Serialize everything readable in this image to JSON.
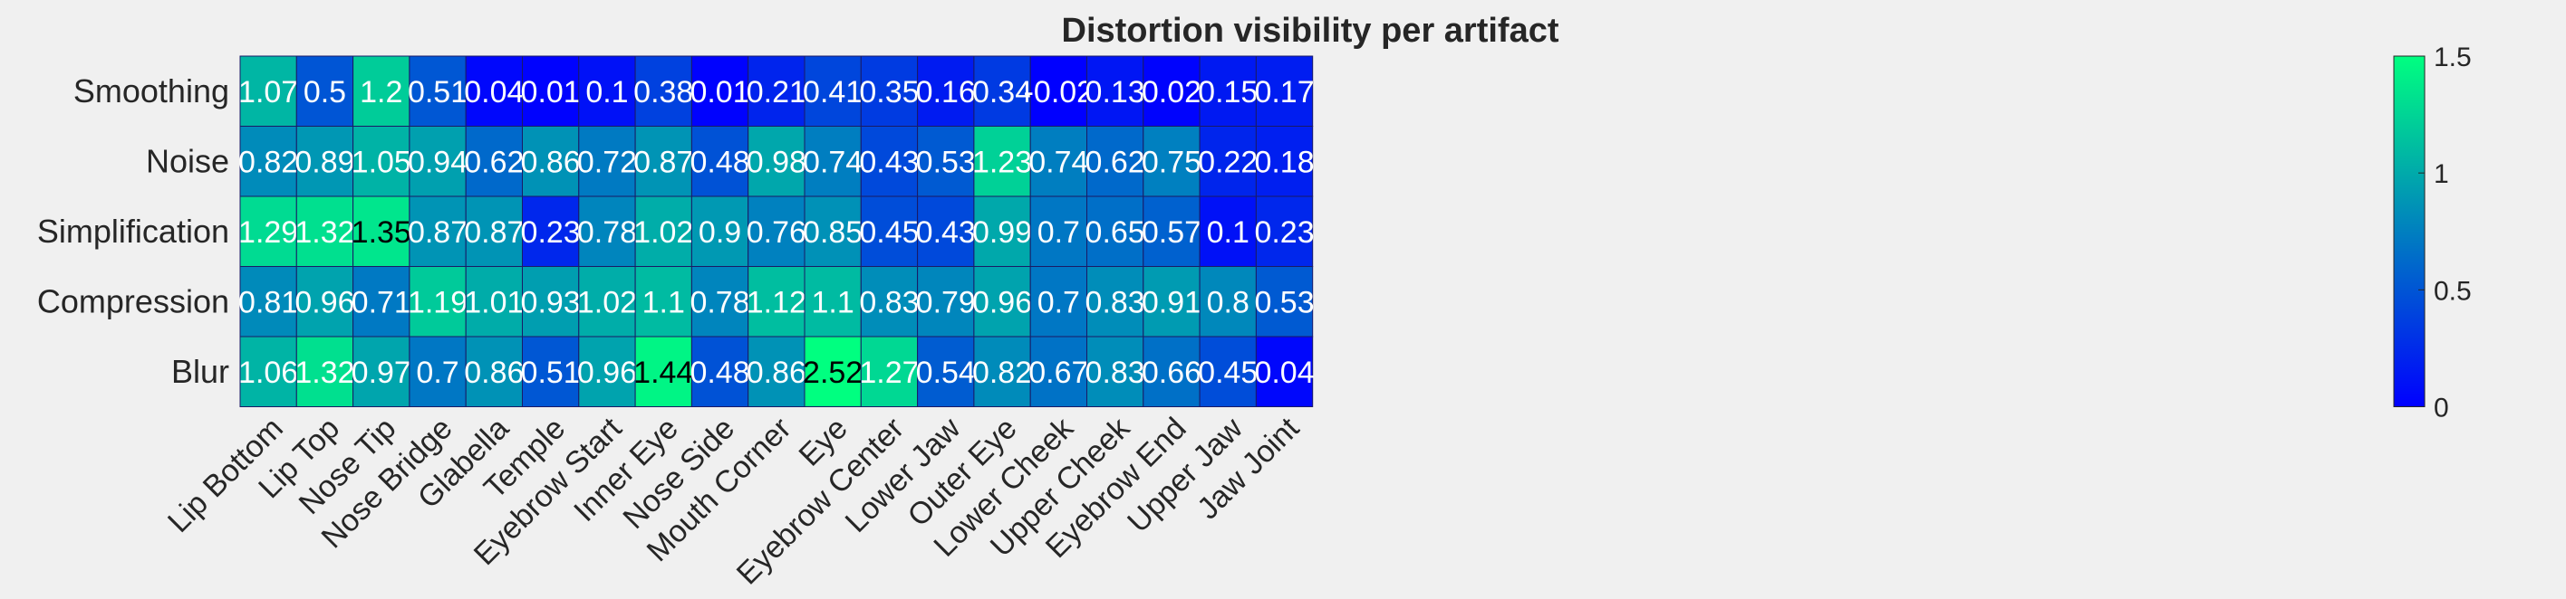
{
  "chart_data": {
    "type": "heatmap",
    "title": "Distortion visibility per artifact",
    "rows": [
      "Smoothing",
      "Noise",
      "Simplification",
      "Compression",
      "Blur"
    ],
    "columns": [
      "Lip Bottom",
      "Lip Top",
      "Nose Tip",
      "Nose Bridge",
      "Glabella",
      "Temple",
      "Eyebrow Start",
      "Inner Eye",
      "Nose Side",
      "Mouth Corner",
      "Eye",
      "Eyebrow Center",
      "Lower Jaw",
      "Outer Eye",
      "Lower Cheek",
      "Upper Cheek",
      "Eyebrow End",
      "Upper Jaw",
      "Jaw Joint"
    ],
    "values": [
      [
        1.07,
        0.5,
        1.2,
        0.51,
        0.04,
        0.01,
        0.1,
        0.38,
        0.01,
        0.21,
        0.41,
        0.35,
        0.16,
        0.34,
        -0.02,
        0.13,
        0.02,
        0.15,
        0.17
      ],
      [
        0.82,
        0.89,
        1.05,
        0.94,
        0.62,
        0.86,
        0.72,
        0.87,
        0.48,
        0.98,
        0.74,
        0.43,
        0.53,
        1.23,
        0.74,
        0.62,
        0.75,
        0.22,
        0.18
      ],
      [
        1.29,
        1.32,
        1.35,
        0.87,
        0.87,
        0.23,
        0.78,
        1.02,
        0.9,
        0.76,
        0.85,
        0.45,
        0.43,
        0.99,
        0.7,
        0.65,
        0.57,
        0.1,
        0.23
      ],
      [
        0.81,
        0.96,
        0.71,
        1.19,
        1.01,
        0.93,
        1.02,
        1.1,
        0.78,
        1.12,
        1.1,
        0.83,
        0.79,
        0.96,
        0.7,
        0.83,
        0.91,
        0.8,
        0.53
      ],
      [
        1.06,
        1.32,
        0.97,
        0.7,
        0.86,
        0.51,
        0.96,
        1.44,
        0.48,
        0.86,
        2.52,
        1.27,
        0.54,
        0.82,
        0.67,
        0.83,
        0.66,
        0.45,
        0.04
      ]
    ],
    "color_limits": [
      0,
      1.5
    ],
    "colorbar_ticks": [
      0,
      0.5,
      1,
      1.5
    ],
    "colormap": [
      "#0000ff",
      "#00ff80"
    ],
    "grid": true,
    "legend": "colorbar-right"
  }
}
